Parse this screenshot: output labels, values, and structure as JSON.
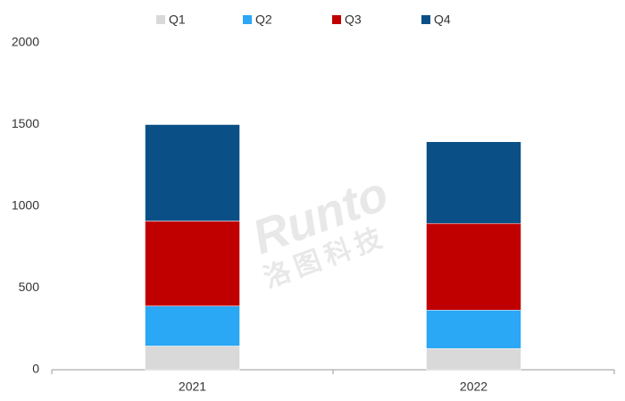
{
  "chart_data": {
    "type": "stacked_bar",
    "categories": [
      "2021",
      "2022"
    ],
    "series": [
      {
        "name": "Q1",
        "color": "#d9d9d9",
        "values": [
          145,
          130
        ]
      },
      {
        "name": "Q2",
        "color": "#2aa7f5",
        "values": [
          245,
          235
        ]
      },
      {
        "name": "Q3",
        "color": "#c00000",
        "values": [
          520,
          530
        ]
      },
      {
        "name": "Q4",
        "color": "#0a5086",
        "values": [
          590,
          500
        ]
      }
    ],
    "ylim": [
      0,
      2000
    ],
    "yticks": [
      0,
      500,
      1000,
      1500,
      2000
    ],
    "grid": false,
    "legend": "top",
    "watermark": [
      "Runto",
      "洛图科技"
    ]
  }
}
